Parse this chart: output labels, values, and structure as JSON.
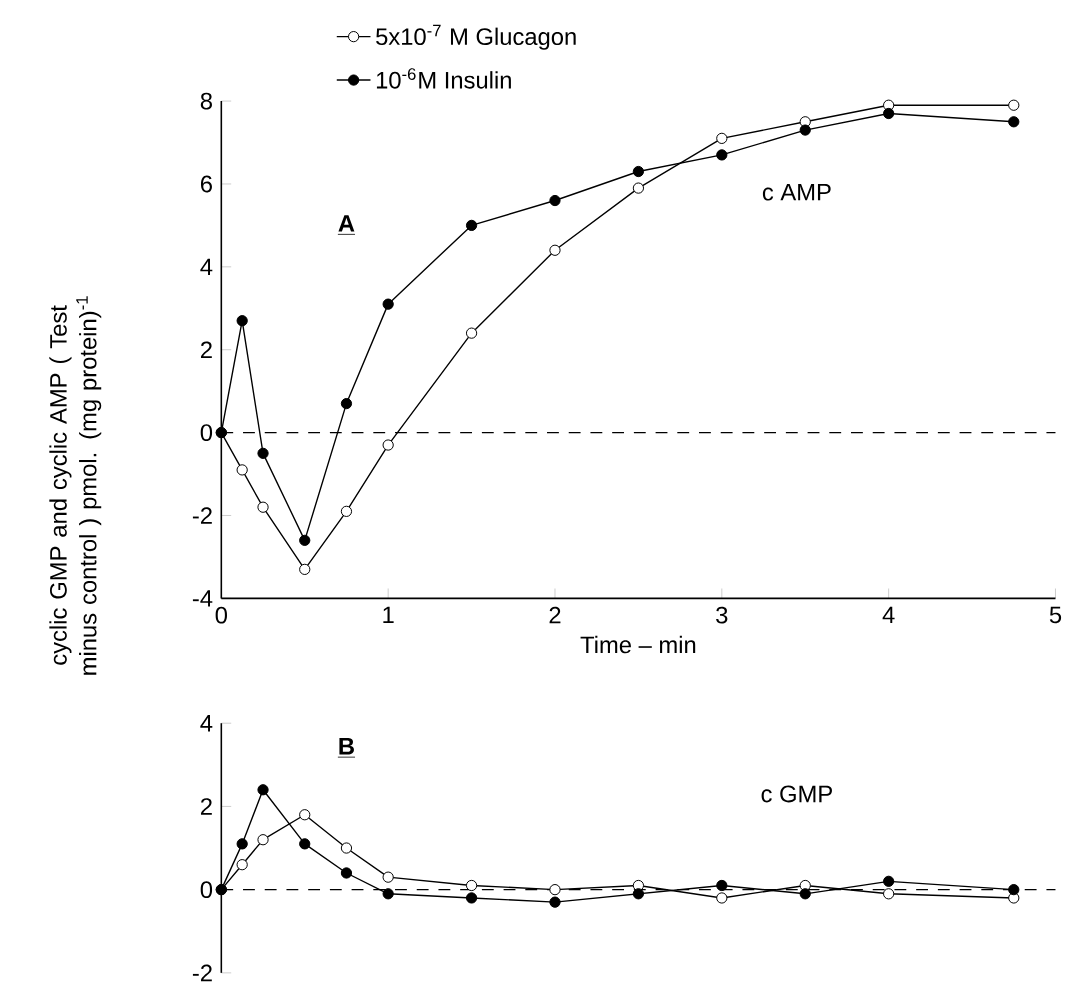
{
  "chart_data": [
    {
      "type": "line",
      "xlabel": "Time – min",
      "ylabel": "cyclic GMP and cyclic AMP ( Test minus control ) pmol. (mg protein)$^{-1}$",
      "annotations": [
        "A",
        "c AMP"
      ],
      "xlim": [
        0,
        5
      ],
      "ylim": [
        -4,
        8
      ],
      "xticks": [
        0,
        1,
        2,
        3,
        4,
        5
      ],
      "yticks": [
        -4,
        -2,
        0,
        2,
        4,
        6,
        8
      ],
      "marker": "circle",
      "legend": "top",
      "ref_lines": [
        {
          "axis": "y",
          "value": 0,
          "line_style": "dashed"
        }
      ],
      "series": [
        {
          "name": "5x10$^{-7}$ M Glucagon",
          "color": "#ffffff",
          "x": [
            0,
            0.125,
            0.25,
            0.5,
            0.75,
            1,
            1.5,
            2,
            2.5,
            3,
            3.5,
            4,
            4.75
          ],
          "values": [
            0,
            -0.9,
            -1.8,
            -3.3,
            -1.9,
            -0.3,
            2.4,
            4.4,
            5.9,
            7.1,
            7.5,
            7.9,
            7.9
          ]
        },
        {
          "name": "10$^{-6}$M Insulin",
          "color": "#000000",
          "x": [
            0,
            0.125,
            0.25,
            0.5,
            0.75,
            1,
            1.5,
            2,
            2.5,
            3,
            3.5,
            4,
            4.75
          ],
          "values": [
            0,
            2.7,
            -0.5,
            -2.6,
            0.7,
            3.1,
            5.0,
            5.6,
            6.3,
            6.7,
            7.3,
            7.7,
            7.5
          ]
        }
      ]
    },
    {
      "type": "line",
      "annotations": [
        "B",
        "c GMP"
      ],
      "xlim": [
        0,
        5
      ],
      "ylim": [
        -2,
        4
      ],
      "xticks": [
        0,
        1,
        2,
        3,
        4,
        5
      ],
      "yticks": [
        -2,
        0,
        2,
        4
      ],
      "tick_labels": "y",
      "marker": "circle",
      "ref_lines": [
        {
          "axis": "y",
          "value": 0,
          "line_style": "dashed"
        }
      ],
      "series": [
        {
          "color": "#ffffff",
          "x": [
            0,
            0.125,
            0.25,
            0.5,
            0.75,
            1,
            1.5,
            2,
            2.5,
            3,
            3.5,
            4,
            4.75
          ],
          "values": [
            0,
            0.6,
            1.2,
            1.8,
            1.0,
            0.3,
            0.1,
            0,
            0.1,
            -0.2,
            0.1,
            -0.1,
            -0.2
          ]
        },
        {
          "color": "#000000",
          "x": [
            0,
            0.125,
            0.25,
            0.5,
            0.75,
            1,
            1.5,
            2,
            2.5,
            3,
            3.5,
            4,
            4.75
          ],
          "values": [
            0,
            1.1,
            2.4,
            1.1,
            0.4,
            -0.1,
            -0.2,
            -0.3,
            -0.1,
            0.1,
            -0.1,
            0.2,
            0
          ]
        }
      ]
    }
  ]
}
